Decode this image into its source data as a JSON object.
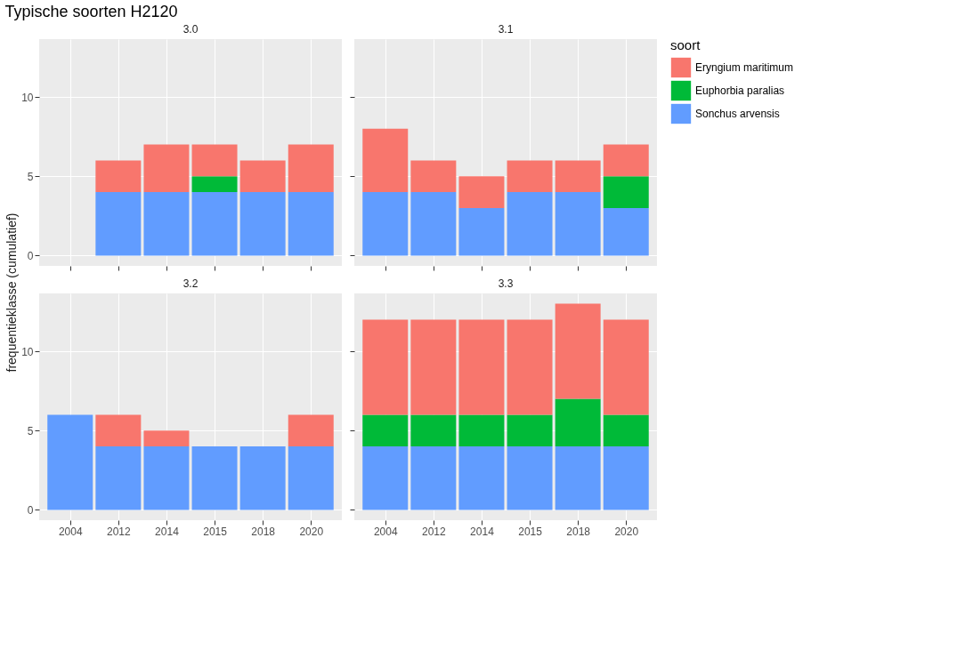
{
  "chart_data": [
    {
      "type": "bar",
      "title": "3.0",
      "annotations": [
        "Typische soorten H2120"
      ],
      "ylabel": "frequentieklasse (cumulatief)",
      "categories": [
        "2004",
        "2012",
        "2014",
        "2015",
        "2018",
        "2020"
      ],
      "stacked": true,
      "ylim": [
        -0.65,
        13.65
      ],
      "yticks": [
        0,
        5,
        10
      ],
      "grid": true,
      "tick_labels": "y",
      "legend": "right",
      "legend_title": "soort",
      "series": [
        {
          "name": "Sonchus arvensis",
          "color": "#619cff",
          "values": [
            null,
            4,
            4,
            4,
            4,
            4
          ]
        },
        {
          "name": "Euphorbia paralias",
          "color": "#00ba38",
          "values": [
            null,
            null,
            null,
            1,
            null,
            null
          ]
        },
        {
          "name": "Eryngium maritimum",
          "color": "#f8766d",
          "values": [
            null,
            2,
            3,
            2,
            2,
            3
          ]
        }
      ]
    },
    {
      "type": "bar",
      "title": "3.1",
      "categories": [
        "2004",
        "2012",
        "2014",
        "2015",
        "2018",
        "2020"
      ],
      "stacked": true,
      "ylim": [
        -0.65,
        13.65
      ],
      "yticks": [
        0,
        5,
        10
      ],
      "grid": true,
      "tick_labels": false,
      "series": [
        {
          "color": "#619cff",
          "values": [
            4,
            4,
            3,
            4,
            4,
            3
          ]
        },
        {
          "color": "#00ba38",
          "values": [
            null,
            null,
            null,
            null,
            null,
            2
          ]
        },
        {
          "color": "#f8766d",
          "values": [
            4,
            2,
            2,
            2,
            2,
            2
          ]
        }
      ]
    },
    {
      "type": "bar",
      "title": "3.2",
      "categories": [
        "2004",
        "2012",
        "2014",
        "2015",
        "2018",
        "2020"
      ],
      "stacked": true,
      "ylim": [
        -0.65,
        13.65
      ],
      "yticks": [
        0,
        5,
        10
      ],
      "grid": true,
      "series": [
        {
          "color": "#619cff",
          "values": [
            6,
            4,
            4,
            4,
            4,
            4
          ]
        },
        {
          "color": "#00ba38",
          "values": [
            null,
            null,
            null,
            null,
            null,
            null
          ]
        },
        {
          "color": "#f8766d",
          "values": [
            null,
            2,
            1,
            null,
            null,
            2
          ]
        }
      ]
    },
    {
      "type": "bar",
      "title": "3.3",
      "categories": [
        "2004",
        "2012",
        "2014",
        "2015",
        "2018",
        "2020"
      ],
      "stacked": true,
      "ylim": [
        -0.65,
        13.65
      ],
      "yticks": [
        0,
        5,
        10
      ],
      "grid": true,
      "tick_labels": "x",
      "series": [
        {
          "color": "#619cff",
          "values": [
            4,
            4,
            4,
            4,
            4,
            4
          ]
        },
        {
          "color": "#00ba38",
          "values": [
            2,
            2,
            2,
            2,
            3,
            2
          ]
        },
        {
          "color": "#f8766d",
          "values": [
            6,
            6,
            6,
            6,
            6,
            6
          ]
        }
      ]
    }
  ]
}
